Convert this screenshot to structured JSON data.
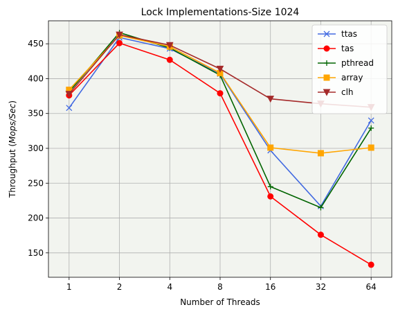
{
  "chart_data": {
    "type": "line",
    "title": "Lock Implementations-Size 1024",
    "xlabel": "Number of Threads",
    "ylabel_prefix": "Throughput (",
    "ylabel_units": "Mops/Sec",
    "ylabel_suffix": ")",
    "categories": [
      "1",
      "2",
      "4",
      "8",
      "16",
      "32",
      "64"
    ],
    "ylim": [
      115,
      483
    ],
    "yticks": [
      150,
      200,
      250,
      300,
      350,
      400,
      450
    ],
    "grid": true,
    "legend_position": "top-right",
    "background": "#f2f4ef",
    "series": [
      {
        "name": "ttas",
        "color": "#4169e1",
        "marker": "x",
        "values": [
          358,
          459,
          443,
          407,
          297,
          217,
          340
        ]
      },
      {
        "name": "tas",
        "color": "#ff0000",
        "marker": "circle",
        "values": [
          376,
          451,
          427,
          379,
          231,
          176,
          133
        ]
      },
      {
        "name": "pthread",
        "color": "#006400",
        "marker": "plus",
        "values": [
          381,
          466,
          444,
          405,
          245,
          215,
          329
        ]
      },
      {
        "name": "array",
        "color": "#ffa500",
        "marker": "square",
        "values": [
          384,
          462,
          446,
          408,
          301,
          293,
          301
        ]
      },
      {
        "name": "clh",
        "color": "#a52a2a",
        "marker": "triangle-down",
        "values": [
          378,
          463,
          448,
          414,
          371,
          364,
          359
        ]
      }
    ]
  }
}
